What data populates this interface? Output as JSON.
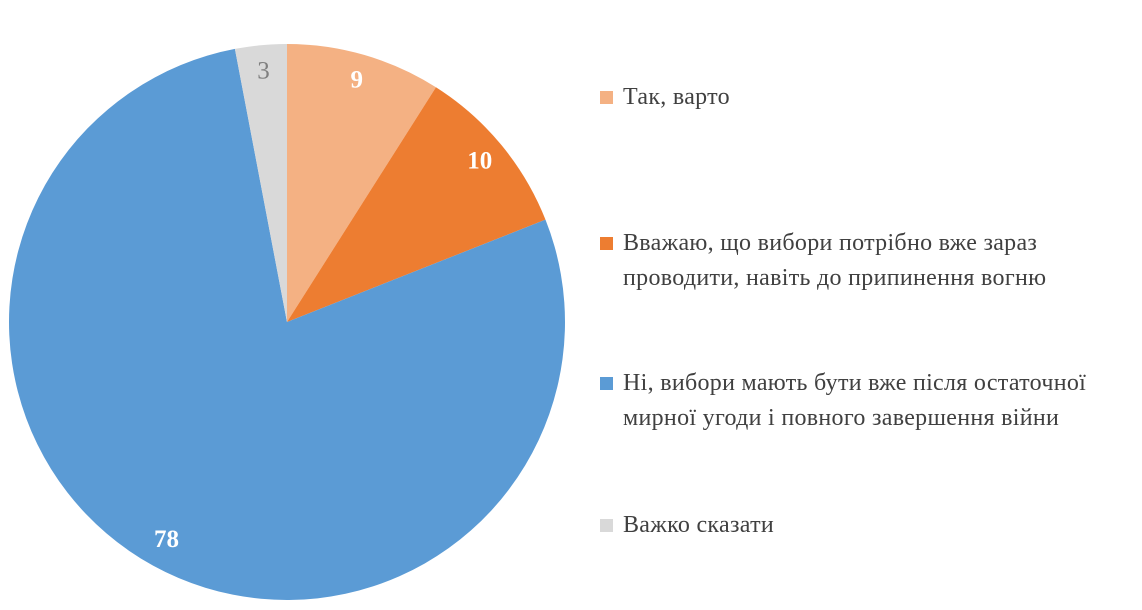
{
  "chart_data": {
    "type": "pie",
    "categories": [
      "Так, варто",
      "Вважаю, що вибори потрібно вже зараз проводити, навіть до припинення вогню",
      "Ні, вибори мають бути вже після остаточної мирної угоди і повного завершення війни",
      "Важко сказати"
    ],
    "values": [
      9,
      10,
      78,
      3
    ],
    "colors": [
      "#f4b183",
      "#ed7d31",
      "#5b9bd5",
      "#d9d9d9"
    ]
  }
}
